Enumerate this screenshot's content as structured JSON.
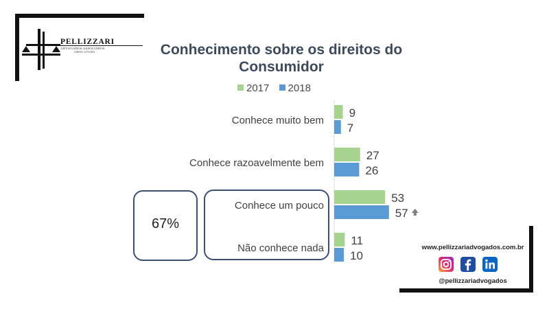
{
  "brand": {
    "name": "PELLIZZARI",
    "subtitle": "ADVOGADOS ASSOCIADOS",
    "registration": "OAB/SC 3.273/2014"
  },
  "chart_data": {
    "type": "bar",
    "orientation": "horizontal",
    "title": "Conhecimento sobre os direitos do Consumidor",
    "categories": [
      "Conhece muito bem",
      "Conhece razoavelmente bem",
      "Conhece um pouco",
      "Não conhece nada"
    ],
    "series": [
      {
        "name": "2017",
        "color": "#a6d38f",
        "values": [
          9,
          27,
          53,
          11
        ]
      },
      {
        "name": "2018",
        "color": "#5b9bd5",
        "values": [
          7,
          26,
          57,
          10
        ]
      }
    ],
    "legend_position": "top",
    "grid": false,
    "xlim": [
      0,
      60
    ],
    "annotations": {
      "increase_marker": {
        "category_index": 2,
        "series_index": 1,
        "icon": "up-arrow-icon"
      },
      "grouped_share": {
        "label": "67%",
        "categories": [
          2,
          3
        ]
      }
    }
  },
  "footer": {
    "website": "www.pellizzariadvogados.com.br",
    "handle": "@pellizzariadvogados",
    "icons": [
      "instagram-icon",
      "facebook-icon",
      "linkedin-icon"
    ],
    "colors": {
      "instagram": "#d62976",
      "facebook": "#1f4ea1",
      "linkedin": "#0a66c2"
    }
  }
}
